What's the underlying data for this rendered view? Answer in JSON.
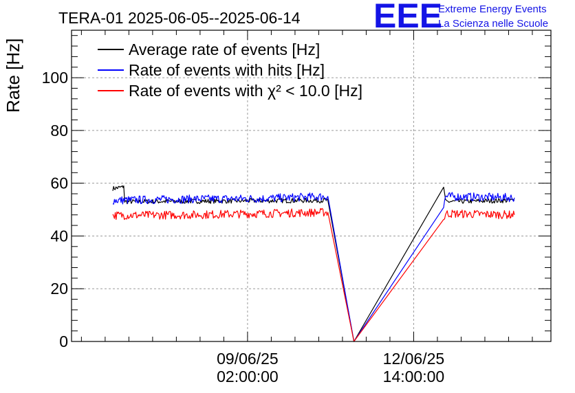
{
  "chart_data": {
    "type": "line",
    "title": "TERA-01 2025-06-05--2025-06-14",
    "ylabel": "Rate [Hz]",
    "xlabel": "",
    "ylim": [
      0,
      118
    ],
    "x_ticks": [
      {
        "date": "09/06/25",
        "time": "02:00:00",
        "t": 3.7083
      },
      {
        "date": "12/06/25",
        "time": "14:00:00",
        "t": 7.2083
      }
    ],
    "x_range_days_from_2025_06_05": [
      0,
      10.1
    ],
    "y_ticks": [
      0,
      20,
      40,
      60,
      80,
      100
    ],
    "grid": true,
    "legend_position": "top-left",
    "series": [
      {
        "name": "Average rate of events [Hz]",
        "color": "#000000",
        "points": [
          [
            0.87,
            58.0
          ],
          [
            1.07,
            58.5
          ],
          [
            1.1,
            59.0
          ],
          [
            1.12,
            53.0
          ],
          [
            5.4,
            53.5
          ],
          [
            5.95,
            0
          ],
          [
            7.84,
            58.5
          ],
          [
            7.88,
            53.0
          ],
          [
            9.33,
            53.5
          ]
        ]
      },
      {
        "name": "Rate of events with hits [Hz]",
        "color": "#0000ff",
        "points": [
          [
            0.87,
            53.5
          ],
          [
            2.5,
            54.0
          ],
          [
            4.0,
            54.2
          ],
          [
            5.4,
            55.0
          ],
          [
            5.95,
            0
          ],
          [
            7.84,
            51.0
          ],
          [
            7.88,
            55.0
          ],
          [
            9.33,
            54.5
          ]
        ]
      },
      {
        "name": "Rate of events with χ² < 10.0 [Hz]",
        "color": "#ff0000",
        "points": [
          [
            0.87,
            47.8
          ],
          [
            2.5,
            48.0
          ],
          [
            4.0,
            48.5
          ],
          [
            5.4,
            49.0
          ],
          [
            5.95,
            0
          ],
          [
            7.84,
            46.0
          ],
          [
            7.88,
            48.5
          ],
          [
            9.33,
            48.0
          ]
        ]
      }
    ]
  },
  "logo": {
    "mark": "EEE",
    "line1": "Extreme Energy Events",
    "line2": "La Scienza nelle Scuole",
    "color": "#1414e6"
  }
}
